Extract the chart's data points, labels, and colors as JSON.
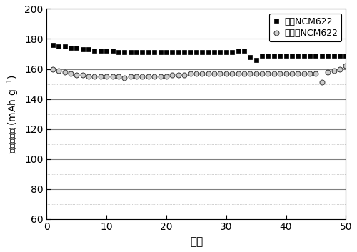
{
  "title": "",
  "xlabel": "循环",
  "ylabel_units": "(mAh g$^{-1}$)",
  "xlim": [
    0,
    50
  ],
  "ylim": [
    60,
    200
  ],
  "yticks": [
    60,
    80,
    100,
    120,
    140,
    160,
    180,
    200
  ],
  "xticks": [
    0,
    10,
    20,
    30,
    40,
    50
  ],
  "legend1": "包覆NCM622",
  "legend2": "未包覆NCM622",
  "series1_x": [
    1,
    2,
    3,
    4,
    5,
    6,
    7,
    8,
    9,
    10,
    11,
    12,
    13,
    14,
    15,
    16,
    17,
    18,
    19,
    20,
    21,
    22,
    23,
    24,
    25,
    26,
    27,
    28,
    29,
    30,
    31,
    32,
    33,
    34,
    35,
    36,
    37,
    38,
    39,
    40,
    41,
    42,
    43,
    44,
    45,
    46,
    47,
    48,
    49,
    50
  ],
  "series1_y": [
    176,
    175,
    175,
    174,
    174,
    173,
    173,
    172,
    172,
    172,
    172,
    171,
    171,
    171,
    171,
    171,
    171,
    171,
    171,
    171,
    171,
    171,
    171,
    171,
    171,
    171,
    171,
    171,
    171,
    171,
    171,
    172,
    172,
    168,
    166,
    169,
    169,
    169,
    169,
    169,
    169,
    169,
    169,
    169,
    169,
    169,
    169,
    169,
    169,
    169
  ],
  "series2_x": [
    1,
    2,
    3,
    4,
    5,
    6,
    7,
    8,
    9,
    10,
    11,
    12,
    13,
    14,
    15,
    16,
    17,
    18,
    19,
    20,
    21,
    22,
    23,
    24,
    25,
    26,
    27,
    28,
    29,
    30,
    31,
    32,
    33,
    34,
    35,
    36,
    37,
    38,
    39,
    40,
    41,
    42,
    43,
    44,
    45,
    46,
    47,
    48,
    49,
    50
  ],
  "series2_y": [
    160,
    159,
    158,
    157,
    156,
    156,
    155,
    155,
    155,
    155,
    155,
    155,
    154,
    155,
    155,
    155,
    155,
    155,
    155,
    155,
    156,
    156,
    156,
    157,
    157,
    157,
    157,
    157,
    157,
    157,
    157,
    157,
    157,
    157,
    157,
    157,
    157,
    157,
    157,
    157,
    157,
    157,
    157,
    157,
    157,
    151,
    158,
    159,
    160,
    162
  ],
  "grid_major_color": "#808080",
  "grid_minor_color": "#a0a0a0",
  "background_color": "#ffffff",
  "line_color": "#000000",
  "marker1": "s",
  "marker2": "o",
  "markersize": 4,
  "linewidth": 0.0
}
